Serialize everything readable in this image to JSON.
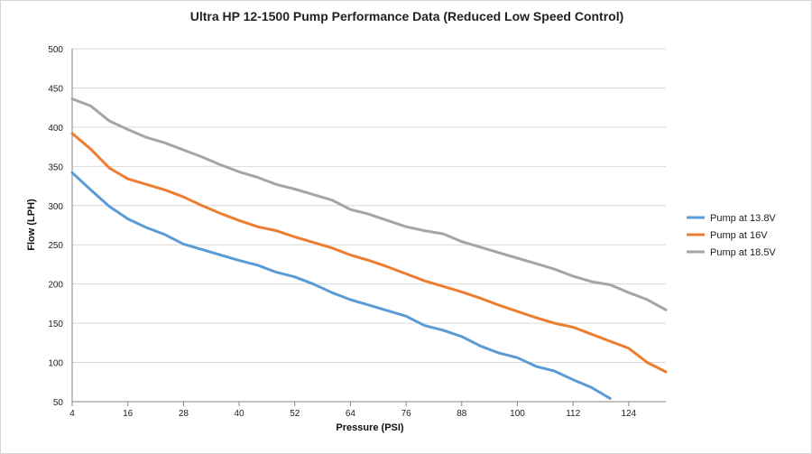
{
  "chart_data": {
    "type": "line",
    "title": "Ultra HP 12-1500 Pump Performance Data (Reduced Low Speed  Control)",
    "xlabel": "Pressure (PSI)",
    "ylabel": "Flow (LPH)",
    "x_ticks": [
      "4",
      "16",
      "28",
      "40",
      "52",
      "64",
      "76",
      "88",
      "100",
      "112",
      "124"
    ],
    "y_ticks": [
      "50",
      "100",
      "150",
      "200",
      "250",
      "300",
      "350",
      "400",
      "450",
      "500"
    ],
    "xlim": [
      4,
      132
    ],
    "ylim": [
      50,
      500
    ],
    "grid": "horizontal",
    "legend_position": "right",
    "x": [
      4,
      8,
      12,
      16,
      20,
      24,
      28,
      32,
      36,
      40,
      44,
      48,
      52,
      56,
      60,
      64,
      68,
      72,
      76,
      80,
      84,
      88,
      92,
      96,
      100,
      104,
      108,
      112,
      116,
      120,
      124,
      128,
      132
    ],
    "series": [
      {
        "name": "Pump at 13.8V",
        "color": "#5b9bd5",
        "values": [
          342,
          320,
          299,
          283,
          272,
          263,
          251,
          244,
          237,
          230,
          224,
          215,
          209,
          200,
          189,
          180,
          173,
          166,
          159,
          147,
          141,
          133,
          121,
          112,
          106,
          95,
          89,
          78,
          68,
          54,
          null,
          null,
          null
        ]
      },
      {
        "name": "Pump at 16V",
        "color": "#ed7d31",
        "values": [
          392,
          372,
          348,
          334,
          327,
          320,
          311,
          300,
          290,
          281,
          273,
          268,
          260,
          253,
          246,
          237,
          230,
          222,
          213,
          204,
          197,
          190,
          182,
          173,
          165,
          157,
          150,
          145,
          136,
          127,
          118,
          100,
          88
        ]
      },
      {
        "name": "Pump at 18.5V",
        "color": "#a5a5a5",
        "values": [
          436,
          427,
          408,
          397,
          387,
          380,
          371,
          362,
          352,
          343,
          336,
          327,
          321,
          314,
          307,
          295,
          289,
          281,
          273,
          268,
          264,
          254,
          247,
          240,
          233,
          226,
          219,
          210,
          203,
          199,
          189,
          180,
          167
        ]
      }
    ]
  }
}
